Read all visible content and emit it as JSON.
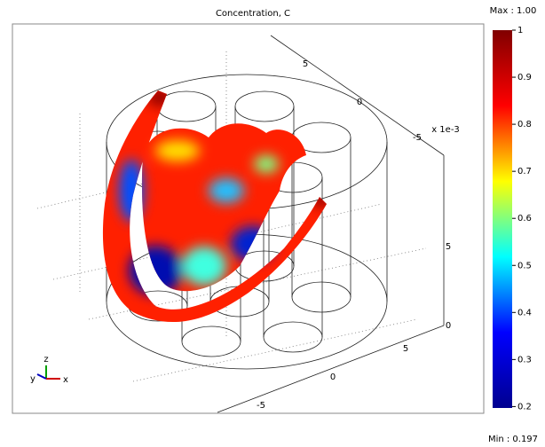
{
  "chart_data": {
    "type": "surface3d",
    "title": "Concentration, C",
    "colorbar": {
      "max_label": "Max : 1.00",
      "min_label": "Min : 0.197",
      "ylim": [
        0.197,
        1
      ],
      "yticks": [
        0.2,
        0.3,
        0.4,
        0.5,
        0.6,
        0.7,
        0.8,
        0.9,
        1
      ],
      "colors": [
        "#00008f",
        "#0000ff",
        "#00ffff",
        "#ffff00",
        "#ff0000",
        "#800000"
      ]
    },
    "axis_labels": [
      "5",
      "0",
      "-5",
      "x 1e-3",
      "5",
      "0",
      "5",
      "0",
      "-5"
    ],
    "triad": [
      "y",
      "z",
      "x"
    ]
  }
}
